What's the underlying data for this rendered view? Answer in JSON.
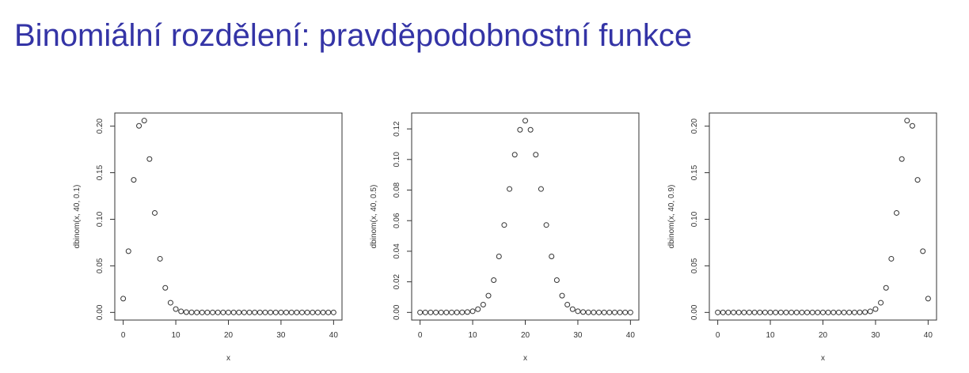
{
  "title": "Binomiální rozdělení: pravděpodobnostní funkce",
  "chart_data": [
    {
      "type": "scatter",
      "xlabel": "x",
      "ylabel": "dbinom(x, 40, 0.1)",
      "color": "#333333",
      "x": [
        0,
        1,
        2,
        3,
        4,
        5,
        6,
        7,
        8,
        9,
        10,
        11,
        12,
        13,
        14,
        15,
        16,
        17,
        18,
        19,
        20,
        21,
        22,
        23,
        24,
        25,
        26,
        27,
        28,
        29,
        30,
        31,
        32,
        33,
        34,
        35,
        36,
        37,
        38,
        39,
        40
      ],
      "values": [
        0.0148,
        0.0657,
        0.1423,
        0.2003,
        0.2059,
        0.1647,
        0.1068,
        0.0576,
        0.0264,
        0.0104,
        0.0036,
        0.0011,
        0.0003,
        0.0001,
        0,
        0,
        0,
        0,
        0,
        0,
        0,
        0,
        0,
        0,
        0,
        0,
        0,
        0,
        0,
        0,
        0,
        0,
        0,
        0,
        0,
        0,
        0,
        0,
        0,
        0,
        0
      ],
      "xlim": [
        -1.6,
        41.6
      ],
      "xticks": [
        0,
        10,
        20,
        30,
        40
      ],
      "ylim": [
        -0.0082,
        0.2141
      ],
      "yticks": [
        {
          "value": 0,
          "label": "0.00"
        },
        {
          "value": 0.05,
          "label": "0.05"
        },
        {
          "value": 0.1,
          "label": "0.10"
        },
        {
          "value": 0.15,
          "label": "0.15"
        },
        {
          "value": 0.2,
          "label": "0.20"
        }
      ]
    },
    {
      "type": "scatter",
      "xlabel": "x",
      "ylabel": "dbinom(x, 40, 0.5)",
      "color": "#333333",
      "x": [
        0,
        1,
        2,
        3,
        4,
        5,
        6,
        7,
        8,
        9,
        10,
        11,
        12,
        13,
        14,
        15,
        16,
        17,
        18,
        19,
        20,
        21,
        22,
        23,
        24,
        25,
        26,
        27,
        28,
        29,
        30,
        31,
        32,
        33,
        34,
        35,
        36,
        37,
        38,
        39,
        40
      ],
      "values": [
        0,
        0,
        0,
        0,
        0,
        0,
        0,
        1e-05,
        7e-05,
        0.00025,
        0.00077,
        0.0021,
        0.00508,
        0.01095,
        0.02111,
        0.03659,
        0.05717,
        0.0807,
        0.10312,
        0.1194,
        0.12537,
        0.1194,
        0.10312,
        0.0807,
        0.05717,
        0.03659,
        0.02111,
        0.01095,
        0.00508,
        0.0021,
        0.00077,
        0.00025,
        7e-05,
        1e-05,
        0,
        0,
        0,
        0,
        0,
        0,
        0
      ],
      "xlim": [
        -1.6,
        41.6
      ],
      "xticks": [
        0,
        10,
        20,
        30,
        40
      ],
      "ylim": [
        -0.005,
        0.1304
      ],
      "yticks": [
        {
          "value": 0,
          "label": "0.00"
        },
        {
          "value": 0.02,
          "label": "0.02"
        },
        {
          "value": 0.04,
          "label": "0.04"
        },
        {
          "value": 0.06,
          "label": "0.06"
        },
        {
          "value": 0.08,
          "label": "0.08"
        },
        {
          "value": 0.1,
          "label": "0.10"
        },
        {
          "value": 0.12,
          "label": "0.12"
        }
      ]
    },
    {
      "type": "scatter",
      "xlabel": "x",
      "ylabel": "dbinom(x, 40, 0.9)",
      "color": "#333333",
      "x": [
        0,
        1,
        2,
        3,
        4,
        5,
        6,
        7,
        8,
        9,
        10,
        11,
        12,
        13,
        14,
        15,
        16,
        17,
        18,
        19,
        20,
        21,
        22,
        23,
        24,
        25,
        26,
        27,
        28,
        29,
        30,
        31,
        32,
        33,
        34,
        35,
        36,
        37,
        38,
        39,
        40
      ],
      "values": [
        0,
        0,
        0,
        0,
        0,
        0,
        0,
        0,
        0,
        0,
        0,
        0,
        0,
        0,
        0,
        0,
        0,
        0,
        0,
        0,
        0,
        0,
        0,
        0,
        0,
        0,
        0,
        0.0001,
        0.0003,
        0.0011,
        0.0036,
        0.0104,
        0.0264,
        0.0576,
        0.1068,
        0.1647,
        0.2059,
        0.2003,
        0.1423,
        0.0657,
        0.0148
      ],
      "xlim": [
        -1.6,
        41.6
      ],
      "xticks": [
        0,
        10,
        20,
        30,
        40
      ],
      "ylim": [
        -0.0082,
        0.2141
      ],
      "yticks": [
        {
          "value": 0,
          "label": "0.00"
        },
        {
          "value": 0.05,
          "label": "0.05"
        },
        {
          "value": 0.1,
          "label": "0.10"
        },
        {
          "value": 0.15,
          "label": "0.15"
        },
        {
          "value": 0.2,
          "label": "0.20"
        }
      ]
    }
  ]
}
